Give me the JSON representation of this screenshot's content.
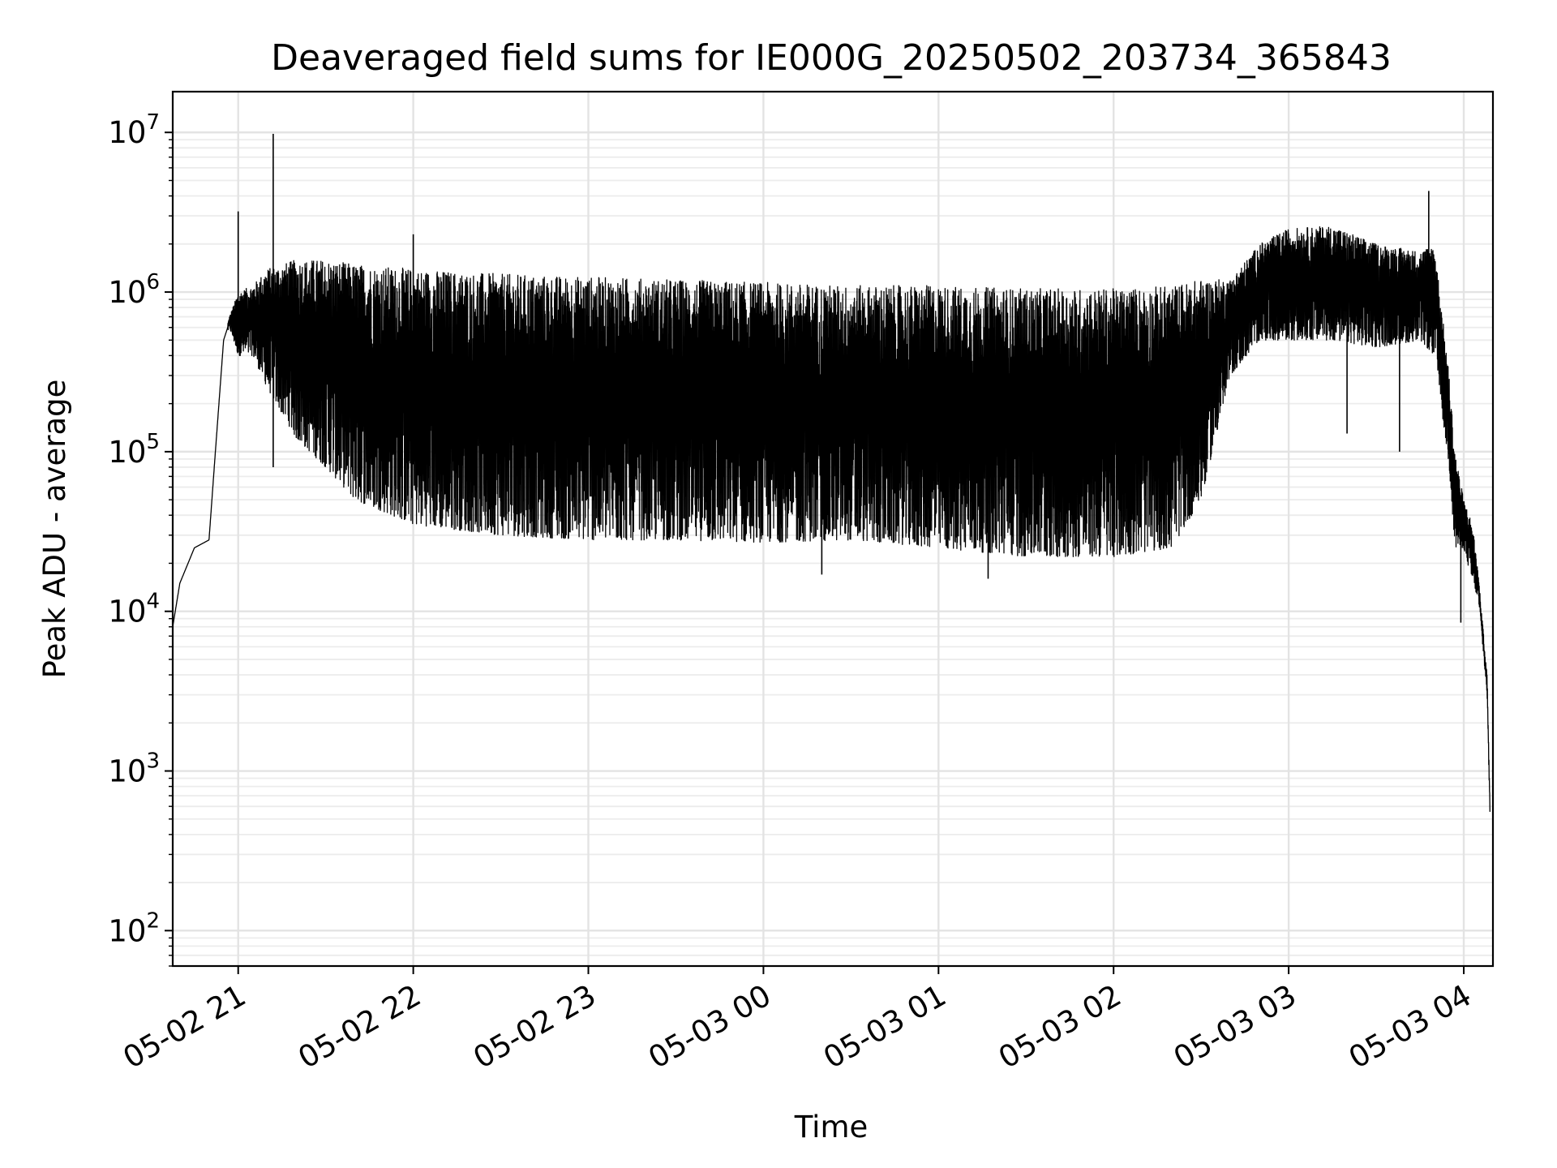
{
  "chart_data": {
    "type": "line",
    "title": "Deaveraged field sums for IE000G_20250502_203734_365843",
    "xlabel": "Time",
    "ylabel": "Peak ADU - average",
    "yscale": "log",
    "ylim": [
      60,
      18000000
    ],
    "xlim": [
      "2025-05-02 20:37:34",
      "2025-05-03 04:10:00"
    ],
    "grid": "on",
    "legend": "none",
    "line_color": "#000000",
    "x_ticks": [
      {
        "t": "2025-05-02 21:00",
        "label": "05-02 21"
      },
      {
        "t": "2025-05-02 22:00",
        "label": "05-02 22"
      },
      {
        "t": "2025-05-02 23:00",
        "label": "05-02 23"
      },
      {
        "t": "2025-05-03 00:00",
        "label": "05-03 00"
      },
      {
        "t": "2025-05-03 01:00",
        "label": "05-03 01"
      },
      {
        "t": "2025-05-03 02:00",
        "label": "05-03 02"
      },
      {
        "t": "2025-05-03 03:00",
        "label": "05-03 03"
      },
      {
        "t": "2025-05-03 04:00",
        "label": "05-03 04"
      }
    ],
    "y_ticks": [
      {
        "value": 100,
        "base": "10",
        "exp": "2"
      },
      {
        "value": 1000,
        "base": "10",
        "exp": "3"
      },
      {
        "value": 10000,
        "base": "10",
        "exp": "4"
      },
      {
        "value": 100000,
        "base": "10",
        "exp": "5"
      },
      {
        "value": 1000000,
        "base": "10",
        "exp": "6"
      },
      {
        "value": 10000000,
        "base": "10",
        "exp": "7"
      }
    ],
    "envelope": {
      "x": [
        "2025-05-02 20:37:34",
        "2025-05-02 20:40",
        "2025-05-02 20:45",
        "2025-05-02 20:50",
        "2025-05-02 20:52",
        "2025-05-02 20:55",
        "2025-05-02 20:57",
        "2025-05-02 21:00",
        "2025-05-02 21:05",
        "2025-05-02 21:10",
        "2025-05-02 21:20",
        "2025-05-02 21:30",
        "2025-05-02 21:40",
        "2025-05-02 22:00",
        "2025-05-02 22:30",
        "2025-05-02 23:00",
        "2025-05-02 23:30",
        "2025-05-03 00:00",
        "2025-05-03 00:30",
        "2025-05-03 01:00",
        "2025-05-03 01:30",
        "2025-05-03 02:00",
        "2025-05-03 02:20",
        "2025-05-03 02:30",
        "2025-05-03 02:40",
        "2025-05-03 02:50",
        "2025-05-03 03:00",
        "2025-05-03 03:15",
        "2025-05-03 03:30",
        "2025-05-03 03:45",
        "2025-05-03 03:50",
        "2025-05-03 03:55",
        "2025-05-03 03:57",
        "2025-05-03 04:00",
        "2025-05-03 04:03",
        "2025-05-03 04:05",
        "2025-05-03 04:08",
        "2025-05-03 04:09"
      ],
      "upper": [
        8000,
        15000,
        25000,
        28000,
        90000,
        500000,
        700000,
        1000000,
        1100000,
        1400000,
        1600000,
        1600000,
        1500000,
        1400000,
        1300000,
        1250000,
        1200000,
        1150000,
        1100000,
        1100000,
        1050000,
        1050000,
        1100000,
        1200000,
        1200000,
        2000000,
        2500000,
        2600000,
        2000000,
        1800000,
        2000000,
        300000,
        100000,
        50000,
        35000,
        17000,
        4000,
        600
      ],
      "lower": [
        8000,
        15000,
        25000,
        28000,
        90000,
        500000,
        600000,
        400000,
        400000,
        250000,
        120000,
        80000,
        50000,
        35000,
        30000,
        28000,
        28000,
        27000,
        28000,
        25000,
        22000,
        22000,
        25000,
        50000,
        300000,
        500000,
        500000,
        500000,
        450000,
        500000,
        400000,
        80000,
        25000,
        25000,
        15000,
        12000,
        3000,
        500
      ]
    },
    "spikes": [
      {
        "t": "2025-05-02 21:00",
        "value": 3200000
      },
      {
        "t": "2025-05-02 21:12",
        "value": 9800000
      },
      {
        "t": "2025-05-02 21:12",
        "value": 80000
      },
      {
        "t": "2025-05-02 22:00",
        "value": 2300000
      },
      {
        "t": "2025-05-03 00:20",
        "value": 17000
      },
      {
        "t": "2025-05-03 01:17",
        "value": 16000
      },
      {
        "t": "2025-05-03 03:48",
        "value": 4300000
      },
      {
        "t": "2025-05-03 03:20",
        "value": 130000
      },
      {
        "t": "2025-05-03 03:38",
        "value": 100000
      },
      {
        "t": "2025-05-03 03:59",
        "value": 8500
      }
    ]
  }
}
